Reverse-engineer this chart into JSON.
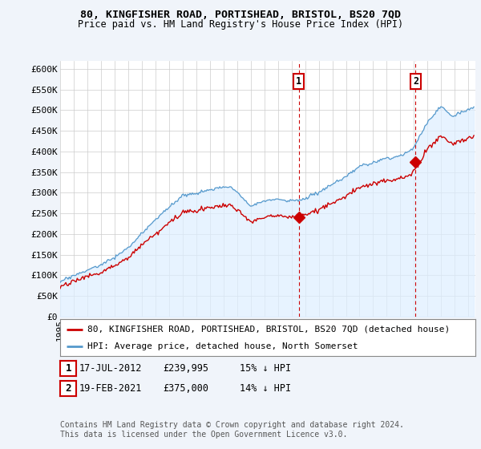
{
  "title": "80, KINGFISHER ROAD, PORTISHEAD, BRISTOL, BS20 7QD",
  "subtitle": "Price paid vs. HM Land Registry's House Price Index (HPI)",
  "ylabel_ticks": [
    "£0",
    "£50K",
    "£100K",
    "£150K",
    "£200K",
    "£250K",
    "£300K",
    "£350K",
    "£400K",
    "£450K",
    "£500K",
    "£550K",
    "£600K"
  ],
  "ytick_values": [
    0,
    50000,
    100000,
    150000,
    200000,
    250000,
    300000,
    350000,
    400000,
    450000,
    500000,
    550000,
    600000
  ],
  "ylim": [
    0,
    620000
  ],
  "xlim_start": 1995.0,
  "xlim_end": 2025.5,
  "sale1_x": 2012.54,
  "sale1_y": 239995,
  "sale1_label": "1",
  "sale2_x": 2021.12,
  "sale2_y": 375000,
  "sale2_label": "2",
  "red_line_color": "#cc0000",
  "blue_line_color": "#5599cc",
  "blue_fill_color": "#ddeeff",
  "vline_color": "#cc0000",
  "legend_label_red": "80, KINGFISHER ROAD, PORTISHEAD, BRISTOL, BS20 7QD (detached house)",
  "legend_label_blue": "HPI: Average price, detached house, North Somerset",
  "annotation1_date": "17-JUL-2012",
  "annotation1_price": "£239,995",
  "annotation1_hpi": "15% ↓ HPI",
  "annotation2_date": "19-FEB-2021",
  "annotation2_price": "£375,000",
  "annotation2_hpi": "14% ↓ HPI",
  "footnote": "Contains HM Land Registry data © Crown copyright and database right 2024.\nThis data is licensed under the Open Government Licence v3.0.",
  "bg_color": "#f0f4fa",
  "plot_bg_color": "#ffffff",
  "title_fontsize": 9.5,
  "subtitle_fontsize": 8.5,
  "tick_fontsize": 8,
  "legend_fontsize": 8,
  "annot_fontsize": 8.5,
  "footnote_fontsize": 7
}
